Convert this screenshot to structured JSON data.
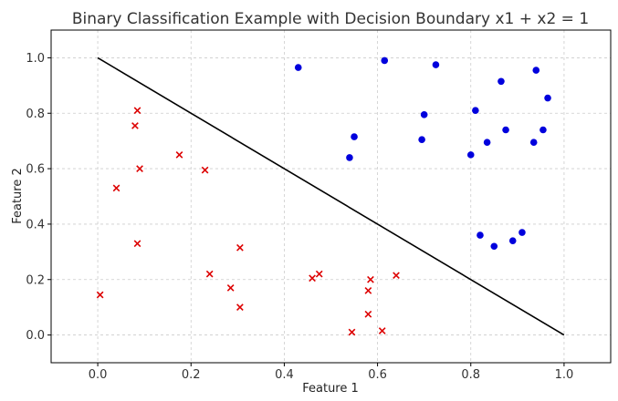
{
  "chart_data": {
    "type": "scatter",
    "title": "Binary Classification Example with Decision Boundary x1 + x2 = 1",
    "xlabel": "Feature 1",
    "ylabel": "Feature 2",
    "xlim": [
      -0.1,
      1.1
    ],
    "ylim": [
      -0.1,
      1.1
    ],
    "xticks": [
      "0.0",
      "0.2",
      "0.4",
      "0.6",
      "0.8",
      "1.0"
    ],
    "yticks": [
      "0.0",
      "0.2",
      "0.4",
      "0.6",
      "0.8",
      "1.0"
    ],
    "grid": true,
    "boundary": {
      "x": [
        0,
        1
      ],
      "y": [
        1,
        0
      ],
      "color": "#000000"
    },
    "series": [
      {
        "marker": "circle",
        "color": "#0000dd",
        "points": [
          [
            0.43,
            0.965
          ],
          [
            0.615,
            0.99
          ],
          [
            0.725,
            0.975
          ],
          [
            0.94,
            0.955
          ],
          [
            0.865,
            0.915
          ],
          [
            0.965,
            0.855
          ],
          [
            0.81,
            0.81
          ],
          [
            0.7,
            0.795
          ],
          [
            0.55,
            0.715
          ],
          [
            0.875,
            0.74
          ],
          [
            0.955,
            0.74
          ],
          [
            0.695,
            0.705
          ],
          [
            0.835,
            0.695
          ],
          [
            0.935,
            0.695
          ],
          [
            0.54,
            0.64
          ],
          [
            0.8,
            0.65
          ],
          [
            0.82,
            0.36
          ],
          [
            0.85,
            0.32
          ],
          [
            0.89,
            0.34
          ],
          [
            0.91,
            0.37
          ]
        ]
      },
      {
        "marker": "x",
        "color": "#dd0000",
        "points": [
          [
            0.085,
            0.81
          ],
          [
            0.08,
            0.755
          ],
          [
            0.175,
            0.65
          ],
          [
            0.09,
            0.6
          ],
          [
            0.23,
            0.595
          ],
          [
            0.04,
            0.53
          ],
          [
            0.085,
            0.33
          ],
          [
            0.305,
            0.315
          ],
          [
            0.24,
            0.22
          ],
          [
            0.285,
            0.17
          ],
          [
            0.305,
            0.1
          ],
          [
            0.005,
            0.145
          ],
          [
            0.46,
            0.205
          ],
          [
            0.475,
            0.22
          ],
          [
            0.585,
            0.2
          ],
          [
            0.64,
            0.215
          ],
          [
            0.58,
            0.16
          ],
          [
            0.58,
            0.075
          ],
          [
            0.545,
            0.01
          ],
          [
            0.61,
            0.015
          ]
        ]
      }
    ]
  }
}
